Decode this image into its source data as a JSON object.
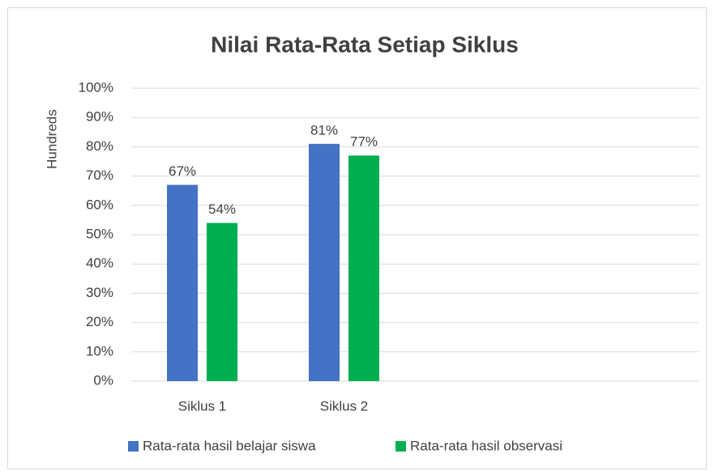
{
  "chart_data": {
    "type": "bar",
    "title": "Nilai Rata-Rata Setiap Siklus",
    "y_label": "Hundreds",
    "categories": [
      "Siklus 1",
      "Siklus 2",
      null,
      null
    ],
    "series": [
      {
        "name": "Rata-rata hasil belajar siswa",
        "color": "#4472c4",
        "values": [
          67,
          81,
          null,
          null
        ],
        "value_labels": [
          "67%",
          "81%",
          null,
          null
        ]
      },
      {
        "name": "Rata-rata hasil observasi",
        "color": "#00b050",
        "values": [
          54,
          77,
          null,
          null
        ],
        "value_labels": [
          "54%",
          "77%",
          null,
          null
        ]
      }
    ],
    "ylim": [
      0,
      100
    ],
    "yticks": [
      {
        "value": 0,
        "label": "0%"
      },
      {
        "value": 10,
        "label": "10%"
      },
      {
        "value": 20,
        "label": "20%"
      },
      {
        "value": 30,
        "label": "30%"
      },
      {
        "value": 40,
        "label": "40%"
      },
      {
        "value": 50,
        "label": "50%"
      },
      {
        "value": 60,
        "label": "60%"
      },
      {
        "value": 70,
        "label": "70%"
      },
      {
        "value": 80,
        "label": "80%"
      },
      {
        "value": 90,
        "label": "90%"
      },
      {
        "value": 100,
        "label": "100%"
      }
    ],
    "grid": true,
    "legend": "bottom"
  }
}
